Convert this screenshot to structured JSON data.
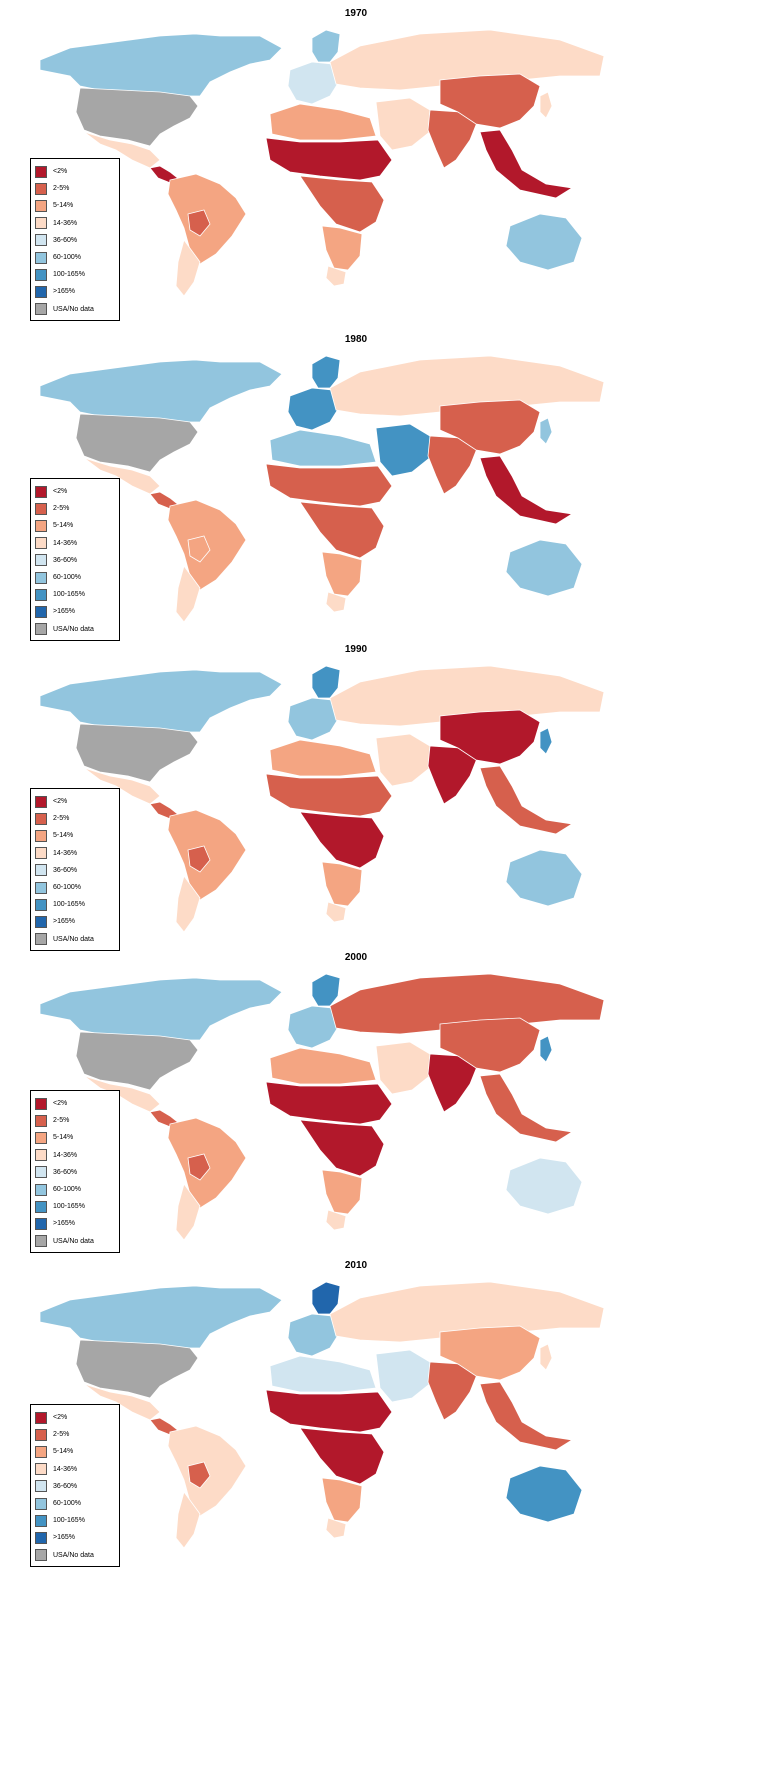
{
  "legend": [
    {
      "label": "<2%",
      "color": "#b2182b"
    },
    {
      "label": "2-5%",
      "color": "#d6604d"
    },
    {
      "label": "5-14%",
      "color": "#f4a582"
    },
    {
      "label": "14-36%",
      "color": "#fddbc7"
    },
    {
      "label": "36-60%",
      "color": "#d1e5f0"
    },
    {
      "label": "60-100%",
      "color": "#92c5de"
    },
    {
      "label": "100-165%",
      "color": "#4393c3"
    },
    {
      "label": ">165%",
      "color": "#2166ac"
    },
    {
      "label": "USA/No data",
      "color": "#a6a6a6"
    }
  ],
  "panels": [
    {
      "year": "1970",
      "regions": {
        "canada": "60-100%",
        "usa": "USA/No data",
        "mexico": "14-36%",
        "central_america": "<2%",
        "south_america": "5-14%",
        "bolivia": "2-5%",
        "south_cone": "14-36%",
        "europe_west": "36-60%",
        "scandinavia": "60-100%",
        "russia": "14-36%",
        "north_africa": "5-14%",
        "sahel": "<2%",
        "central_africa": "2-5%",
        "southern_africa": "5-14%",
        "south_africa": "14-36%",
        "middle_east": "14-36%",
        "south_asia": "2-5%",
        "china": "2-5%",
        "southeast_asia": "<2%",
        "japan": "14-36%",
        "australia": "60-100%"
      }
    },
    {
      "year": "1980",
      "regions": {
        "canada": "60-100%",
        "usa": "USA/No data",
        "mexico": "14-36%",
        "central_america": "2-5%",
        "south_america": "5-14%",
        "bolivia": "5-14%",
        "south_cone": "14-36%",
        "europe_west": "100-165%",
        "scandinavia": "100-165%",
        "russia": "14-36%",
        "north_africa": "60-100%",
        "sahel": "2-5%",
        "central_africa": "2-5%",
        "southern_africa": "5-14%",
        "south_africa": "14-36%",
        "middle_east": "100-165%",
        "south_asia": "2-5%",
        "china": "2-5%",
        "southeast_asia": "<2%",
        "japan": "60-100%",
        "australia": "60-100%"
      }
    },
    {
      "year": "1990",
      "regions": {
        "canada": "60-100%",
        "usa": "USA/No data",
        "mexico": "14-36%",
        "central_america": "2-5%",
        "south_america": "5-14%",
        "bolivia": "2-5%",
        "south_cone": "14-36%",
        "europe_west": "60-100%",
        "scandinavia": "100-165%",
        "russia": "14-36%",
        "north_africa": "5-14%",
        "sahel": "2-5%",
        "central_africa": "<2%",
        "southern_africa": "5-14%",
        "south_africa": "14-36%",
        "middle_east": "14-36%",
        "south_asia": "<2%",
        "china": "<2%",
        "southeast_asia": "2-5%",
        "japan": "100-165%",
        "australia": "60-100%"
      }
    },
    {
      "year": "2000",
      "regions": {
        "canada": "60-100%",
        "usa": "USA/No data",
        "mexico": "14-36%",
        "central_america": "2-5%",
        "south_america": "5-14%",
        "bolivia": "2-5%",
        "south_cone": "14-36%",
        "europe_west": "60-100%",
        "scandinavia": "100-165%",
        "russia": "2-5%",
        "north_africa": "5-14%",
        "sahel": "<2%",
        "central_africa": "<2%",
        "southern_africa": "5-14%",
        "south_africa": "14-36%",
        "middle_east": "14-36%",
        "south_asia": "<2%",
        "china": "2-5%",
        "southeast_asia": "2-5%",
        "japan": "100-165%",
        "australia": "36-60%"
      }
    },
    {
      "year": "2010",
      "regions": {
        "canada": "60-100%",
        "usa": "USA/No data",
        "mexico": "14-36%",
        "central_america": "2-5%",
        "south_america": "14-36%",
        "bolivia": "2-5%",
        "south_cone": "14-36%",
        "europe_west": "60-100%",
        "scandinavia": ">165%",
        "russia": "14-36%",
        "north_africa": "36-60%",
        "sahel": "<2%",
        "central_africa": "<2%",
        "southern_africa": "5-14%",
        "south_africa": "14-36%",
        "middle_east": "36-60%",
        "south_asia": "2-5%",
        "china": "5-14%",
        "southeast_asia": "2-5%",
        "japan": "14-36%",
        "australia": "100-165%"
      }
    }
  ]
}
